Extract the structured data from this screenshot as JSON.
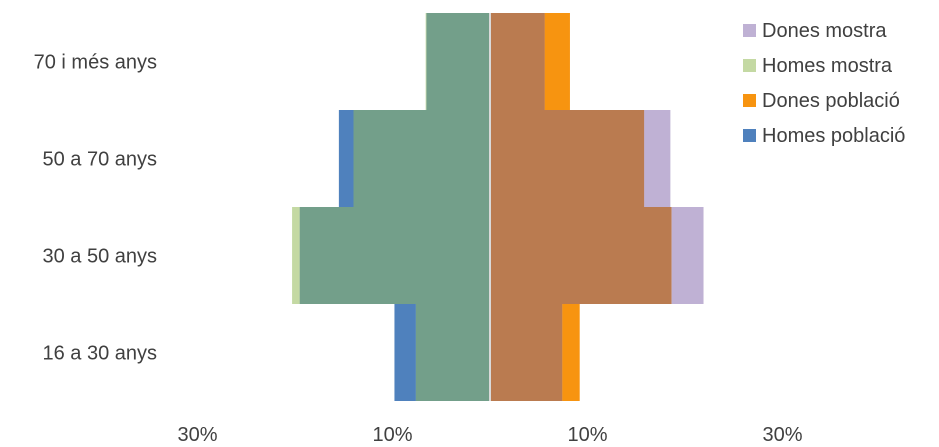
{
  "chart_data": {
    "type": "bar",
    "orientation": "horizontal-diverging",
    "categories": [
      "16 a 30 anys",
      "30 a 50 anys",
      "50 a 70 anys",
      "70 i més anys"
    ],
    "series": [
      {
        "name": "Homes població",
        "side": "left",
        "color": "#4F81BD",
        "values": [
          9.8,
          19.5,
          15.5,
          6.5
        ]
      },
      {
        "name": "Homes mostra",
        "side": "left",
        "color": "#C4D9A3",
        "values": [
          7.6,
          20.3,
          14.0,
          6.6
        ]
      },
      {
        "name": "Dones població",
        "side": "right",
        "color": "#F79410",
        "values": [
          9.2,
          18.6,
          15.8,
          8.2
        ]
      },
      {
        "name": "Dones mostra",
        "side": "right",
        "color": "#BFB1D4",
        "values": [
          7.4,
          21.9,
          18.5,
          5.6
        ]
      }
    ],
    "legend_order": [
      "Dones mostra",
      "Homes mostra",
      "Dones població",
      "Homes població"
    ],
    "legend_position": "top-right",
    "x_tick_labels": [
      "30%",
      "10%",
      "10%",
      "30%"
    ],
    "x_tick_values": [
      -30,
      -10,
      10,
      30
    ],
    "xlim": [
      -30,
      30
    ],
    "overlap_colors": {
      "left": "#739F8A",
      "right": "#BA7B50"
    },
    "center_line_color": "#D9D9D9",
    "grid": false
  }
}
